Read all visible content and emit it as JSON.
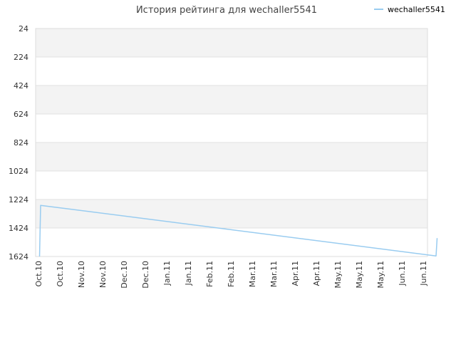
{
  "chart_data": {
    "type": "line",
    "title": "История рейтинга для wechaller5541",
    "xlabel": "",
    "ylabel": "",
    "y_axis_inverted": true,
    "ylim": [
      24,
      1624
    ],
    "y_ticks": [
      "24",
      "224",
      "424",
      "624",
      "824",
      "1024",
      "1224",
      "1424",
      "1624"
    ],
    "x_ticks": [
      "Oct.10",
      "Oct.10",
      "Nov.10",
      "Nov.10",
      "Dec.10",
      "Dec.10",
      "Jan.11",
      "Jan.11",
      "Feb.11",
      "Feb.11",
      "Mar.11",
      "Mar.11",
      "Apr.11",
      "Apr.11",
      "May.11",
      "May.11",
      "May.11",
      "Jun.11",
      "Jun.11"
    ],
    "grid": true,
    "legend_position": "top-right",
    "series": [
      {
        "name": "wechaller5541",
        "color": "#99ccf0",
        "points": [
          {
            "x": 0.05,
            "y": 1624
          },
          {
            "x": 0.1,
            "y": 1265
          },
          {
            "x": 18.6,
            "y": 1620
          },
          {
            "x": 18.65,
            "y": 1495
          }
        ]
      }
    ]
  }
}
